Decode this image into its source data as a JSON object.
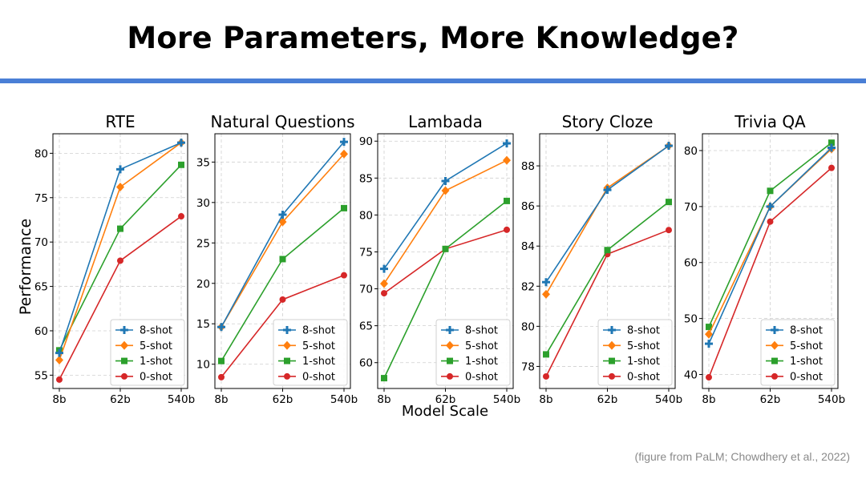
{
  "slide": {
    "title": "More Parameters, More Knowledge?",
    "accent_color": "#4A7FD6",
    "ylabel": "Performance",
    "xlabel": "Model Scale",
    "source": "(figure from PaLM; Chowdhery et al., 2022)"
  },
  "series_colors": {
    "8-shot": "#1f77b4",
    "5-shot": "#ff7f0e",
    "1-shot": "#2ca02c",
    "0-shot": "#d62728"
  },
  "series_markers": {
    "8-shot": "plus",
    "5-shot": "diamond",
    "1-shot": "square",
    "0-shot": "circle"
  },
  "chart_data": [
    {
      "type": "line",
      "title": "RTE",
      "categories": [
        "8b",
        "62b",
        "540b"
      ],
      "ylim": [
        53.5,
        82.2
      ],
      "yticks": [
        55,
        60,
        65,
        70,
        75,
        80
      ],
      "legend": "lower-right",
      "grid": true,
      "series": [
        {
          "name": "8-shot",
          "values": [
            57.5,
            78.2,
            81.2
          ]
        },
        {
          "name": "5-shot",
          "values": [
            56.7,
            76.2,
            81.2
          ]
        },
        {
          "name": "1-shot",
          "values": [
            57.8,
            71.5,
            78.7
          ]
        },
        {
          "name": "0-shot",
          "values": [
            54.5,
            67.9,
            72.9
          ]
        }
      ]
    },
    {
      "type": "line",
      "title": "Natural Questions",
      "categories": [
        "8b",
        "62b",
        "540b"
      ],
      "ylim": [
        7.0,
        38.5
      ],
      "yticks": [
        10,
        15,
        20,
        25,
        30,
        35
      ],
      "legend": "lower-right",
      "grid": true,
      "series": [
        {
          "name": "8-shot",
          "values": [
            14.6,
            28.5,
            37.5
          ]
        },
        {
          "name": "5-shot",
          "values": [
            14.6,
            27.6,
            36.0
          ]
        },
        {
          "name": "1-shot",
          "values": [
            10.4,
            23.0,
            29.3
          ]
        },
        {
          "name": "0-shot",
          "values": [
            8.4,
            18.0,
            21.0
          ]
        }
      ]
    },
    {
      "type": "line",
      "title": "Lambada",
      "categories": [
        "8b",
        "62b",
        "540b"
      ],
      "ylim": [
        56.5,
        91.0
      ],
      "yticks": [
        60,
        65,
        70,
        75,
        80,
        85,
        90
      ],
      "legend": "lower-right",
      "grid": true,
      "series": [
        {
          "name": "8-shot",
          "values": [
            72.7,
            84.6,
            89.7
          ]
        },
        {
          "name": "5-shot",
          "values": [
            70.7,
            83.3,
            87.4
          ]
        },
        {
          "name": "1-shot",
          "values": [
            57.9,
            75.4,
            81.9
          ]
        },
        {
          "name": "0-shot",
          "values": [
            69.4,
            75.4,
            78.0
          ]
        }
      ]
    },
    {
      "type": "line",
      "title": "Story Cloze",
      "categories": [
        "8b",
        "62b",
        "540b"
      ],
      "ylim": [
        76.9,
        89.6
      ],
      "yticks": [
        78,
        80,
        82,
        84,
        86,
        88
      ],
      "legend": "lower-right",
      "grid": true,
      "series": [
        {
          "name": "8-shot",
          "values": [
            82.2,
            86.8,
            89.0
          ]
        },
        {
          "name": "5-shot",
          "values": [
            81.6,
            86.9,
            89.0
          ]
        },
        {
          "name": "1-shot",
          "values": [
            78.6,
            83.8,
            86.2
          ]
        },
        {
          "name": "0-shot",
          "values": [
            77.5,
            83.6,
            84.8
          ]
        }
      ]
    },
    {
      "type": "line",
      "title": "Trivia QA",
      "categories": [
        "8b",
        "62b",
        "540b"
      ],
      "ylim": [
        37.5,
        83.0
      ],
      "yticks": [
        40,
        50,
        60,
        70,
        80
      ],
      "legend": "lower-right",
      "grid": true,
      "series": [
        {
          "name": "8-shot",
          "values": [
            45.5,
            70.0,
            80.5
          ]
        },
        {
          "name": "5-shot",
          "values": [
            47.2,
            70.0,
            80.3
          ]
        },
        {
          "name": "1-shot",
          "values": [
            48.5,
            72.8,
            81.4
          ]
        },
        {
          "name": "0-shot",
          "values": [
            39.5,
            67.3,
            76.9
          ]
        }
      ]
    }
  ]
}
